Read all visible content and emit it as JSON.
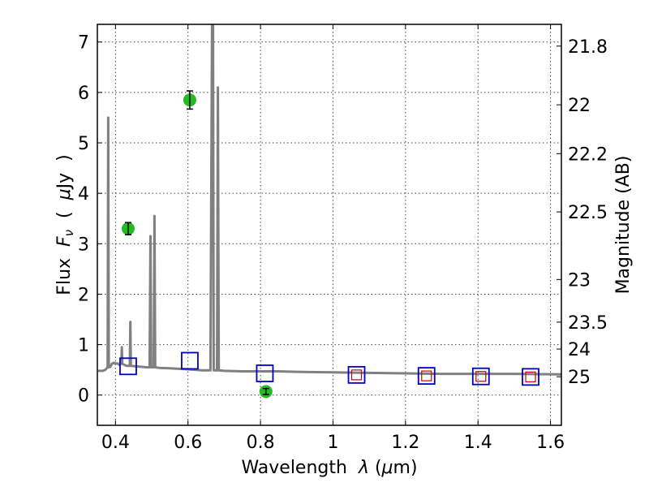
{
  "chart_data": {
    "type": "scatter",
    "title": "",
    "xlabel": {
      "prefix": "Wavelength  ",
      "symbol": "λ",
      "suffix": " (",
      "unit_mu": "μ",
      "unit_rest": "m)"
    },
    "ylabel": {
      "prefix": "Flux  ",
      "symbol": "F",
      "subscript": "ν",
      "mid": "  (  ",
      "unit_mu": "μ",
      "unit_rest": "Jy  )"
    },
    "y2label": "Magnitude (AB)",
    "xlim": [
      0.35,
      1.63
    ],
    "ylim": [
      -0.6,
      7.35
    ],
    "grid": true,
    "x_ticks": [
      0.4,
      0.6,
      0.8,
      1.0,
      1.2,
      1.4,
      1.6
    ],
    "x_tick_labels": [
      "0.4",
      "0.6",
      "0.8",
      "1",
      "1.2",
      "1.4",
      "1.6"
    ],
    "y_ticks": [
      0,
      1,
      2,
      3,
      4,
      5,
      6,
      7
    ],
    "y_tick_labels": [
      "0",
      "1",
      "2",
      "3",
      "4",
      "5",
      "6",
      "7"
    ],
    "y2_ticks": [
      21.8,
      22,
      22.2,
      22.5,
      23,
      23.5,
      24,
      25
    ],
    "y2_tick_labels": [
      "21.8",
      "22",
      "22.2",
      "22.5",
      "23",
      "23.5",
      "24",
      "25"
    ],
    "colors": {
      "model": "#808080",
      "observed": "#22bb22",
      "synthetic": "#0000cc",
      "filter_model": "#cc0000"
    },
    "series": [
      {
        "name": "model spectrum",
        "style": "line",
        "x": [
          0.352,
          0.365,
          0.372,
          0.3785,
          0.38,
          0.3815,
          0.386,
          0.39,
          0.395,
          0.4,
          0.405,
          0.41,
          0.416,
          0.4175,
          0.419,
          0.43,
          0.4395,
          0.441,
          0.4425,
          0.455,
          0.47,
          0.485,
          0.494,
          0.4965,
          0.4985,
          0.503,
          0.5055,
          0.5075,
          0.5095,
          0.52,
          0.55,
          0.6,
          0.64,
          0.662,
          0.6665,
          0.669,
          0.671,
          0.675,
          0.68,
          0.6825,
          0.685,
          0.7,
          0.75,
          0.8,
          0.85,
          0.9,
          1.0,
          1.1,
          1.2,
          1.3,
          1.4,
          1.5,
          1.63
        ],
        "y": [
          0.48,
          0.48,
          0.5,
          0.55,
          5.5,
          0.55,
          0.56,
          0.62,
          0.64,
          0.62,
          0.63,
          0.6,
          0.62,
          0.95,
          0.62,
          0.58,
          0.58,
          1.45,
          0.58,
          0.57,
          0.56,
          0.55,
          0.55,
          3.15,
          0.55,
          0.55,
          0.55,
          3.55,
          0.55,
          0.54,
          0.53,
          0.51,
          0.49,
          0.49,
          7.4,
          7.4,
          0.49,
          0.49,
          0.49,
          6.1,
          0.49,
          0.48,
          0.47,
          0.47,
          0.47,
          0.46,
          0.45,
          0.44,
          0.43,
          0.42,
          0.42,
          0.42,
          0.41
        ]
      },
      {
        "name": "observed photometry",
        "style": "points-errorbars",
        "x": [
          0.435,
          0.605,
          0.815
        ],
        "y": [
          3.3,
          5.85,
          0.07
        ],
        "yerr": [
          0.12,
          0.18,
          0.06
        ]
      },
      {
        "name": "synthetic photometry",
        "style": "open-squares",
        "x": [
          0.435,
          0.605,
          0.812,
          1.065,
          1.258,
          1.408,
          1.545
        ],
        "y": [
          0.57,
          0.68,
          0.43,
          0.4,
          0.38,
          0.37,
          0.36
        ]
      },
      {
        "name": "model filter flux",
        "style": "small-open-squares",
        "x": [
          1.065,
          1.258,
          1.408,
          1.545
        ],
        "y": [
          0.4,
          0.38,
          0.37,
          0.36
        ]
      }
    ]
  }
}
